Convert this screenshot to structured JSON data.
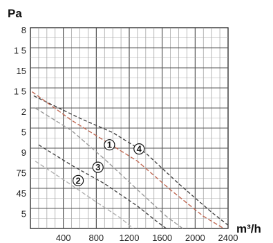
{
  "chart_data": {
    "type": "line",
    "ylabel": "Pa",
    "xlabel": "m³/h",
    "x_ticks": [
      "400",
      "800",
      "1200",
      "1600",
      "2000",
      "2400"
    ],
    "y_ticks": [
      "8",
      "1 5",
      "15",
      "1 5",
      "2",
      "5",
      "9",
      "75",
      "45",
      "5"
    ],
    "xlim": [
      0,
      2400
    ],
    "grid": true,
    "markers": [
      {
        "label": "1",
        "x": 960,
        "y_tick_index": 5.6
      },
      {
        "label": "2",
        "x": 580,
        "y_tick_index": 7.35
      },
      {
        "label": "3",
        "x": 820,
        "y_tick_index": 6.7
      },
      {
        "label": "4",
        "x": 1320,
        "y_tick_index": 5.8
      }
    ],
    "series": [
      {
        "color": "#444444",
        "dash": "5,3",
        "points": [
          [
            40,
            3.2
          ],
          [
            600,
            4.3
          ],
          [
            1000,
            5.0
          ],
          [
            1400,
            6.0
          ],
          [
            1800,
            7.5
          ],
          [
            2200,
            8.9
          ],
          [
            2420,
            9.6
          ]
        ]
      },
      {
        "color": "#c06a55",
        "dash": "6,3",
        "points": [
          [
            20,
            3.0
          ],
          [
            500,
            4.4
          ],
          [
            900,
            5.4
          ],
          [
            1300,
            6.4
          ],
          [
            1700,
            7.8
          ],
          [
            2100,
            9.1
          ],
          [
            2350,
            9.7
          ]
        ]
      },
      {
        "color": "#9a9a9a",
        "dash": "6,3",
        "points": [
          [
            60,
            3.8
          ],
          [
            500,
            4.9
          ],
          [
            900,
            6.3
          ],
          [
            1300,
            7.8
          ],
          [
            1650,
            9.1
          ],
          [
            1850,
            9.7
          ]
        ]
      },
      {
        "color": "#444444",
        "dash": "5,3",
        "points": [
          [
            100,
            5.6
          ],
          [
            500,
            6.6
          ],
          [
            900,
            7.5
          ],
          [
            1300,
            8.6
          ],
          [
            1550,
            9.4
          ],
          [
            1650,
            9.7
          ]
        ]
      },
      {
        "color": "#b0b0b0",
        "dash": "6,3",
        "points": [
          [
            60,
            6.4
          ],
          [
            400,
            7.3
          ],
          [
            800,
            8.4
          ],
          [
            1100,
            9.2
          ],
          [
            1250,
            9.7
          ]
        ]
      }
    ]
  }
}
